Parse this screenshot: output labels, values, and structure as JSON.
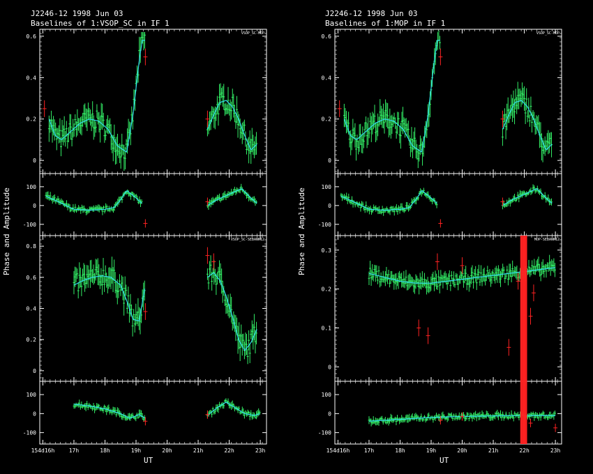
{
  "panels": [
    {
      "title": "J2246-12  1998 Jun 03",
      "subtitle": "Baselines of 1:VSOP_SC in IF 1",
      "ylabel": "Phase and Amplitude",
      "xlabel": "UT",
      "x_tick_labels": [
        "154d16h",
        "17h",
        "18h",
        "19h",
        "20h",
        "21h",
        "22h",
        "23h"
      ],
      "baselines": [
        {
          "name": "VSOP_SC-MOP",
          "amp_ticks": [
            "0.6",
            "0.4",
            "0.2",
            "0"
          ],
          "phase_ticks": [
            "100",
            "0",
            "-100"
          ]
        },
        {
          "name": "VSOP_SC-SEBANK12",
          "amp_ticks": [
            "0.8",
            "0.6",
            "0.4",
            "0.2",
            "0"
          ],
          "phase_ticks": [
            "100",
            "0",
            "-100"
          ]
        }
      ]
    },
    {
      "title": "J2246-12  1998 Jun 03",
      "subtitle": "Baselines of 1:MOP in IF 1",
      "ylabel": "Phase and Amplitude",
      "xlabel": "UT",
      "x_tick_labels": [
        "154d16h",
        "17h",
        "18h",
        "19h",
        "20h",
        "21h",
        "22h",
        "23h"
      ],
      "baselines": [
        {
          "name": "VSOP_SC-MOP",
          "amp_ticks": [
            "0.6",
            "0.4",
            "0.2",
            "0"
          ],
          "phase_ticks": [
            "100",
            "0",
            "-100"
          ]
        },
        {
          "name": "MOP-SEBANK12",
          "amp_ticks": [
            "0.3",
            "0.2",
            "0.1",
            "0"
          ],
          "phase_ticks": [
            "100",
            "0",
            "-100"
          ]
        }
      ]
    }
  ],
  "chart_data": [
    {
      "type": "scatter",
      "title": "J2246-12  1998 Jun 03",
      "subtitle": "Baselines of 1:VSOP_SC in IF 1",
      "xlabel": "UT",
      "ylabel": "Phase and Amplitude",
      "xlim": [
        15.9,
        23.2
      ],
      "subplots": [
        {
          "baseline": "VSOP_SC-MOP",
          "amplitude": {
            "ylim": [
              -0.05,
              0.62
            ],
            "model": {
              "x": [
                16.2,
                16.4,
                16.6,
                16.9,
                17.2,
                17.5,
                17.8,
                18.1,
                18.4,
                18.7,
                18.9,
                19.1,
                19.2,
                19.3
              ],
              "y": [
                0.2,
                0.12,
                0.1,
                0.14,
                0.18,
                0.2,
                0.19,
                0.15,
                0.07,
                0.04,
                0.22,
                0.48,
                0.58,
                0.58
              ]
            },
            "model2": {
              "x": [
                21.3,
                21.5,
                21.7,
                21.9,
                22.1,
                22.3,
                22.5,
                22.7,
                22.9
              ],
              "y": [
                0.15,
                0.22,
                0.28,
                0.29,
                0.26,
                0.2,
                0.12,
                0.05,
                0.08
              ]
            },
            "outliers": [
              {
                "x": 16.05,
                "y": 0.25
              },
              {
                "x": 19.3,
                "y": 0.5
              },
              {
                "x": 21.3,
                "y": 0.2
              }
            ]
          },
          "phase": {
            "ylim": [
              -160,
              170
            ],
            "model": {
              "x": [
                16.1,
                16.5,
                17,
                17.5,
                18,
                18.3,
                18.5,
                18.7,
                19,
                19.2
              ],
              "y": [
                50,
                20,
                -20,
                -25,
                -20,
                -10,
                30,
                80,
                40,
                10
              ]
            },
            "model2": {
              "x": [
                21.3,
                21.6,
                22,
                22.4,
                22.7,
                22.9
              ],
              "y": [
                0,
                30,
                60,
                90,
                40,
                10
              ]
            },
            "outliers": [
              {
                "x": 19.3,
                "y": -95
              },
              {
                "x": 21.3,
                "y": 20
              }
            ]
          }
        },
        {
          "baseline": "VSOP_SC-SEBANK12",
          "amplitude": {
            "ylim": [
              -0.05,
              0.85
            ],
            "model": {
              "x": [
                17,
                17.3,
                17.6,
                17.9,
                18.2,
                18.5,
                18.7,
                18.9,
                19.1,
                19.3
              ],
              "y": [
                0.55,
                0.58,
                0.6,
                0.61,
                0.6,
                0.55,
                0.45,
                0.33,
                0.32,
                0.55
              ]
            },
            "model2": {
              "x": [
                21.3,
                21.5,
                21.7,
                21.9,
                22.1,
                22.3,
                22.5,
                22.7,
                22.9
              ],
              "y": [
                0.6,
                0.63,
                0.58,
                0.48,
                0.35,
                0.2,
                0.13,
                0.18,
                0.27
              ]
            },
            "outliers": [
              {
                "x": 21.3,
                "y": 0.74
              },
              {
                "x": 21.5,
                "y": 0.7
              },
              {
                "x": 19.3,
                "y": 0.38
              }
            ]
          },
          "phase": {
            "ylim": [
              -160,
              170
            ],
            "model": {
              "x": [
                17,
                17.5,
                18,
                18.5,
                18.8,
                19.1,
                19.3
              ],
              "y": [
                50,
                40,
                25,
                0,
                -25,
                -5,
                -25
              ]
            },
            "model2": {
              "x": [
                21.3,
                21.6,
                21.9,
                22.2,
                22.5,
                22.8,
                23
              ],
              "y": [
                -10,
                30,
                60,
                30,
                0,
                -10,
                0
              ]
            },
            "outliers": [
              {
                "x": 19.3,
                "y": -40
              },
              {
                "x": 21.3,
                "y": -5
              }
            ]
          }
        }
      ]
    },
    {
      "type": "scatter",
      "title": "J2246-12  1998 Jun 03",
      "subtitle": "Baselines of 1:MOP in IF 1",
      "xlabel": "UT",
      "ylabel": "Phase and Amplitude",
      "xlim": [
        15.9,
        23.2
      ],
      "subplots": [
        {
          "baseline": "VSOP_SC-MOP",
          "amplitude": {
            "ylim": [
              -0.05,
              0.62
            ],
            "model": {
              "x": [
                16.2,
                16.4,
                16.6,
                16.9,
                17.2,
                17.5,
                17.8,
                18.1,
                18.4,
                18.7,
                18.9,
                19.1,
                19.2,
                19.3
              ],
              "y": [
                0.2,
                0.12,
                0.1,
                0.14,
                0.18,
                0.2,
                0.19,
                0.15,
                0.07,
                0.04,
                0.22,
                0.48,
                0.58,
                0.58
              ]
            },
            "model2": {
              "x": [
                21.3,
                21.5,
                21.7,
                21.9,
                22.1,
                22.3,
                22.5,
                22.7,
                22.9
              ],
              "y": [
                0.15,
                0.22,
                0.28,
                0.29,
                0.26,
                0.2,
                0.12,
                0.05,
                0.08
              ]
            },
            "outliers": [
              {
                "x": 16.05,
                "y": 0.25
              },
              {
                "x": 19.3,
                "y": 0.5
              },
              {
                "x": 21.3,
                "y": 0.2
              }
            ]
          },
          "phase": {
            "ylim": [
              -160,
              170
            ],
            "model": {
              "x": [
                16.1,
                16.5,
                17,
                17.5,
                18,
                18.3,
                18.5,
                18.7,
                19,
                19.2
              ],
              "y": [
                50,
                20,
                -20,
                -25,
                -20,
                -10,
                30,
                80,
                40,
                10
              ]
            },
            "model2": {
              "x": [
                21.3,
                21.6,
                22,
                22.4,
                22.7,
                22.9
              ],
              "y": [
                0,
                30,
                60,
                90,
                40,
                10
              ]
            },
            "outliers": [
              {
                "x": 19.3,
                "y": -95
              },
              {
                "x": 21.3,
                "y": 20
              }
            ]
          }
        },
        {
          "baseline": "MOP-SEBANK12",
          "amplitude": {
            "ylim": [
              -0.03,
              0.33
            ],
            "model": {
              "x": [
                17,
                17.5,
                18,
                18.5,
                19,
                19.5,
                20,
                20.5,
                21,
                21.5,
                22,
                22.5,
                23
              ],
              "y": [
                0.24,
                0.23,
                0.22,
                0.215,
                0.215,
                0.22,
                0.225,
                0.23,
                0.235,
                0.24,
                0.245,
                0.25,
                0.255
              ]
            },
            "model2": {
              "x": [],
              "y": []
            },
            "outliers": [
              {
                "x": 18.6,
                "y": 0.1
              },
              {
                "x": 18.9,
                "y": 0.08
              },
              {
                "x": 19.2,
                "y": 0.27
              },
              {
                "x": 20,
                "y": 0.26
              },
              {
                "x": 21.5,
                "y": 0.05
              },
              {
                "x": 21.8,
                "y": 0.22
              },
              {
                "x": 22.2,
                "y": 0.13
              },
              {
                "x": 22.3,
                "y": 0.19
              }
            ]
          },
          "phase": {
            "ylim": [
              -160,
              170
            ],
            "model": {
              "x": [
                17,
                18,
                19,
                20,
                21,
                22,
                23
              ],
              "y": [
                -40,
                -30,
                -20,
                -15,
                -12,
                -10,
                -10
              ]
            },
            "model2": {
              "x": [],
              "y": []
            },
            "outliers": [
              {
                "x": 19.3,
                "y": -35
              },
              {
                "x": 20,
                "y": -15
              },
              {
                "x": 22.2,
                "y": -50
              },
              {
                "x": 23,
                "y": -75
              }
            ]
          }
        }
      ]
    }
  ]
}
